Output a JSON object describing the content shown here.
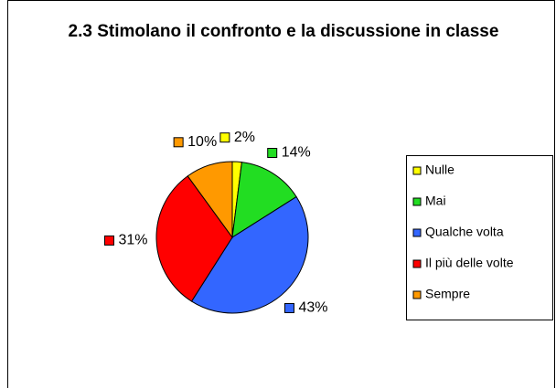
{
  "chart_data": {
    "type": "pie",
    "title": "2.3 Stimolano il confronto e la discussione in classe",
    "categories": [
      "Nulle",
      "Mai",
      "Qualche volta",
      "Il più delle volte",
      "Sempre"
    ],
    "values": [
      2,
      14,
      43,
      31,
      10
    ],
    "value_labels": [
      "2%",
      "14%",
      "43%",
      "31%",
      "10%"
    ],
    "colors": [
      "#ffff00",
      "#22dd22",
      "#3366ff",
      "#ff0000",
      "#ff9900"
    ],
    "legend": "right"
  }
}
